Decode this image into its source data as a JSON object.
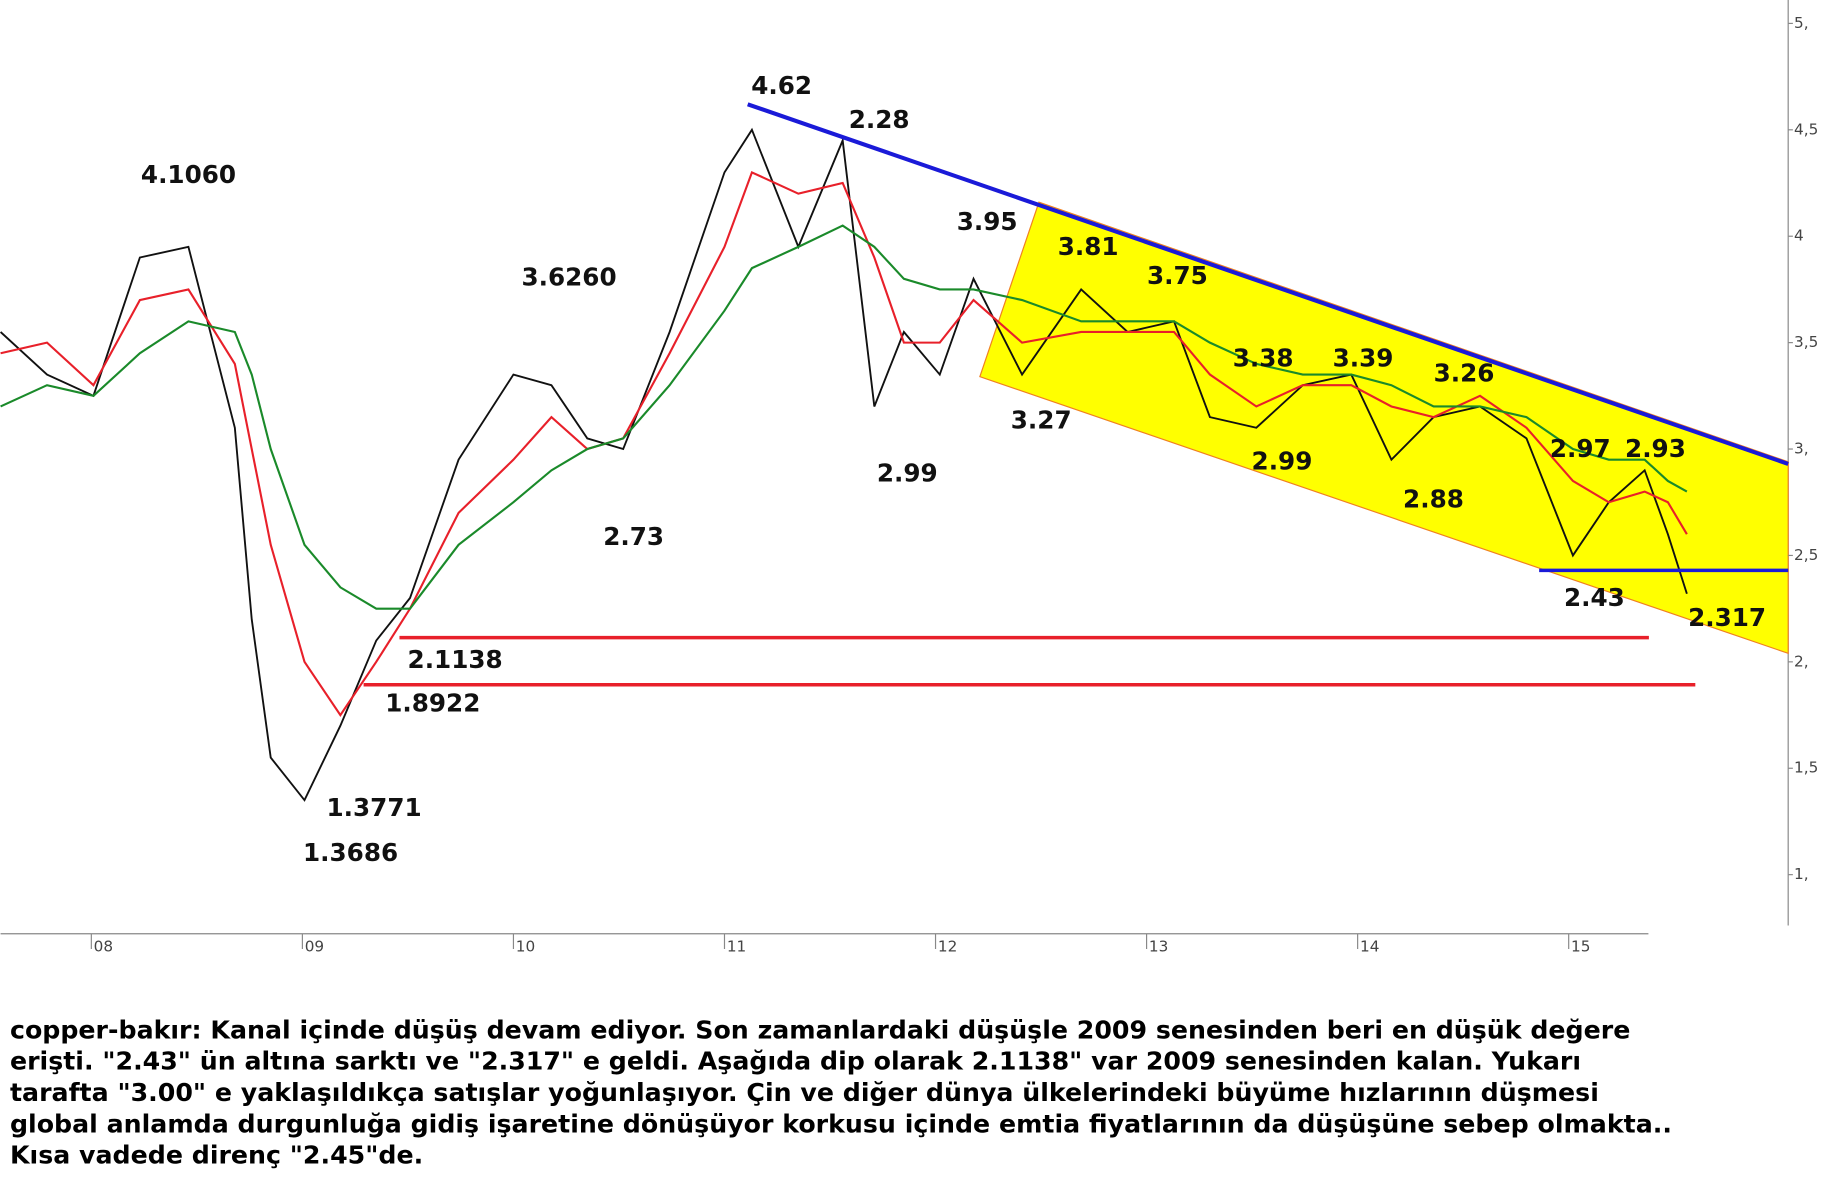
{
  "chart_data": {
    "type": "line",
    "x": [
      2007.57,
      2007.79,
      2008.01,
      2008.23,
      2008.46,
      2008.68,
      2008.76,
      2008.85,
      2009.01,
      2009.18,
      2009.35,
      2009.51,
      2009.74,
      2010.0,
      2010.18,
      2010.35,
      2010.52,
      2010.74,
      2011.0,
      2011.13,
      2011.35,
      2011.56,
      2011.71,
      2011.85,
      2012.02,
      2012.18,
      2012.41,
      2012.69,
      2012.91,
      2013.13,
      2013.3,
      2013.52,
      2013.74,
      2013.97,
      2014.16,
      2014.36,
      2014.58,
      2014.8,
      2015.02,
      2015.19,
      2015.36,
      2015.47,
      2015.56
    ],
    "series": [
      {
        "color": "#111111",
        "values": [
          3.55,
          3.35,
          3.25,
          3.9,
          3.95,
          3.1,
          2.2,
          1.55,
          1.35,
          1.7,
          2.1,
          2.3,
          2.95,
          3.35,
          3.3,
          3.05,
          3.0,
          3.55,
          4.3,
          4.5,
          3.95,
          4.45,
          3.2,
          3.55,
          3.35,
          3.8,
          3.35,
          3.75,
          3.55,
          3.6,
          3.15,
          3.1,
          3.3,
          3.35,
          2.95,
          3.15,
          3.2,
          3.05,
          2.5,
          2.75,
          2.9,
          2.6,
          2.32
        ]
      },
      {
        "color": "#e8202a",
        "values": [
          3.45,
          3.5,
          3.3,
          3.7,
          3.75,
          3.4,
          3.0,
          2.55,
          2.0,
          1.75,
          2.0,
          2.25,
          2.7,
          2.95,
          3.15,
          3.0,
          3.05,
          3.45,
          3.95,
          4.3,
          4.2,
          4.25,
          3.9,
          3.5,
          3.5,
          3.7,
          3.5,
          3.55,
          3.55,
          3.55,
          3.35,
          3.2,
          3.3,
          3.3,
          3.2,
          3.15,
          3.25,
          3.1,
          2.85,
          2.75,
          2.8,
          2.75,
          2.6
        ]
      },
      {
        "color": "#1a8a2a",
        "values": [
          3.2,
          3.3,
          3.25,
          3.45,
          3.6,
          3.55,
          3.35,
          3.0,
          2.55,
          2.35,
          2.25,
          2.25,
          2.55,
          2.75,
          2.9,
          3.0,
          3.05,
          3.3,
          3.65,
          3.85,
          3.95,
          4.05,
          3.95,
          3.8,
          3.75,
          3.75,
          3.7,
          3.6,
          3.6,
          3.6,
          3.5,
          3.4,
          3.35,
          3.35,
          3.3,
          3.2,
          3.2,
          3.15,
          3.0,
          2.95,
          2.95,
          2.85,
          2.8
        ]
      }
    ],
    "xlim": [
      2007.57,
      2016.04
    ],
    "ylim": [
      0.75,
      5.11
    ],
    "xticks": [
      {
        "value": 2008,
        "label": "08"
      },
      {
        "value": 2009,
        "label": "09"
      },
      {
        "value": 2010,
        "label": "10"
      },
      {
        "value": 2011,
        "label": "11"
      },
      {
        "value": 2012,
        "label": "12"
      },
      {
        "value": 2013,
        "label": "13"
      },
      {
        "value": 2014,
        "label": "14"
      },
      {
        "value": 2015,
        "label": "15"
      }
    ],
    "yticks": [
      {
        "value": 1,
        "label": "1,"
      },
      {
        "value": 1.5,
        "label": "1,5"
      },
      {
        "value": 2,
        "label": "2,"
      },
      {
        "value": 2.5,
        "label": "2,5"
      },
      {
        "value": 3,
        "label": "3,"
      },
      {
        "value": 3.5,
        "label": "3,5"
      },
      {
        "value": 4,
        "label": "4"
      },
      {
        "value": 4.5,
        "label": "4,5"
      },
      {
        "value": 5,
        "label": "5,"
      }
    ],
    "channel": {
      "color": "#ffff00",
      "x": [
        2012.49,
        2016.04,
        2016.04,
        2012.21
      ],
      "y": [
        4.16,
        2.94,
        2.04,
        3.34
      ]
    },
    "trendline": {
      "color": "#1a1ad8",
      "x": [
        2011.11,
        2016.04
      ],
      "y": [
        4.62,
        2.93
      ]
    },
    "levels": [
      {
        "value": 2.1138,
        "x": [
          2009.46,
          2015.38
        ],
        "color": "#e8202a"
      },
      {
        "value": 1.8922,
        "x": [
          2009.29,
          2015.6
        ],
        "color": "#e8202a"
      },
      {
        "value": 2.43,
        "x": [
          2014.86,
          2016.04
        ],
        "color": "#1a1ad8"
      }
    ],
    "annotations": [
      "4.1060",
      "4.62",
      "2.28",
      "3.6260",
      "3.95",
      "3.81",
      "3.75",
      "3.38",
      "3.39",
      "3.26",
      "2.97",
      "2.93",
      "3.27",
      "2.99",
      "2.73",
      "2.99",
      "2.88",
      "2.43",
      "2.317",
      "2.1138",
      "1.8922",
      "1.3771",
      "1.3686"
    ],
    "description": [
      "copper-bakır: Kanal içinde düşüş devam ediyor. Son zamanlardaki düşüşle 2009 senesinden beri en düşük değere",
      "erişti. \"2.43\" ün altına sarktı ve \"2.317\" e geldi. Aşağıda dip olarak 2.1138\" var 2009 senesinden kalan. Yukarı",
      "tarafta \"3.00\" e yaklaşıldıkça satışlar yoğunlaşıyor. Çin ve diğer dünya ülkelerindeki büyüme hızlarının düşmesi",
      "global anlamda durgunluğa gidiş işaretine dönüşüyor korkusu içinde emtia fiyatlarının da düşüşüne sebep olmakta..",
      "Kısa vadede direnç \"2.45\"de."
    ]
  }
}
